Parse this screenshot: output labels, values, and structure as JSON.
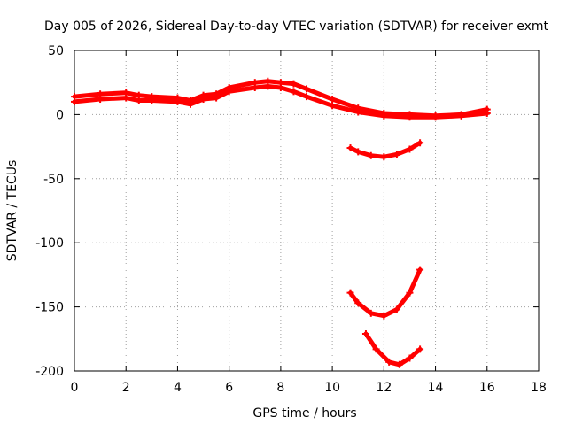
{
  "chart_data": {
    "type": "scatter",
    "title": "Day 005 of 2026, Sidereal Day-to-day VTEC variation (SDTVAR) for receiver exmt",
    "xlabel": "GPS time / hours",
    "ylabel": "SDTVAR / TECUs",
    "xlim": [
      0,
      18
    ],
    "ylim": [
      -200,
      50
    ],
    "x_ticks": [
      0,
      2,
      4,
      6,
      8,
      10,
      12,
      14,
      16,
      18
    ],
    "y_ticks": [
      50,
      0,
      -50,
      -100,
      -150,
      -200
    ],
    "grid": true,
    "color": "#ff0000",
    "series": [
      {
        "name": "main-band-upper",
        "x": [
          0,
          1,
          2,
          2.5,
          3,
          4,
          4.5,
          5,
          5.5,
          6,
          7,
          7.5,
          8,
          8.5,
          9,
          10,
          11,
          12,
          13,
          14,
          15,
          16
        ],
        "y": [
          14,
          16,
          17,
          15,
          14,
          13,
          11,
          15,
          16,
          21,
          25,
          26,
          25,
          24,
          20,
          12,
          5,
          1,
          0,
          -1,
          0,
          4
        ]
      },
      {
        "name": "main-band-lower",
        "x": [
          0,
          1,
          2,
          2.5,
          3,
          4,
          4.5,
          5,
          5.5,
          6,
          7,
          7.5,
          8,
          8.5,
          9,
          10,
          11,
          12,
          13,
          14,
          15,
          16
        ],
        "y": [
          10,
          12,
          13,
          11,
          11,
          10,
          8,
          12,
          13,
          18,
          21,
          22,
          21,
          18,
          14,
          7,
          2,
          -1,
          -2,
          -2,
          -1,
          1
        ]
      },
      {
        "name": "dip-upper",
        "x": [
          10.7,
          11,
          11.5,
          12,
          12.5,
          13,
          13.4
        ],
        "y": [
          -26,
          -29,
          -32,
          -33,
          -31,
          -27,
          -22
        ]
      },
      {
        "name": "dip-middle",
        "x": [
          10.7,
          11,
          11.5,
          12,
          12.5,
          13,
          13.4
        ],
        "y": [
          -139,
          -147,
          -155,
          -157,
          -152,
          -139,
          -121
        ]
      },
      {
        "name": "dip-lower",
        "x": [
          11.3,
          11.7,
          12.2,
          12.6,
          13,
          13.4
        ],
        "y": [
          -171,
          -183,
          -193,
          -195,
          -190,
          -183
        ]
      }
    ]
  }
}
